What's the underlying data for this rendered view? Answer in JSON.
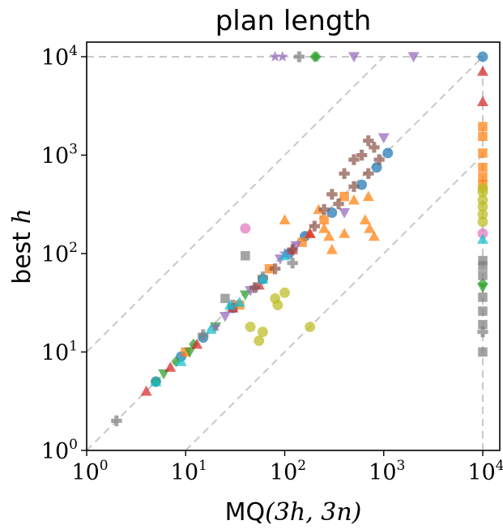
{
  "chart_data": {
    "type": "scatter",
    "title": "plan length",
    "xlabel": {
      "prefix": "MQ",
      "math": "(3h, 3n)"
    },
    "ylabel": {
      "prefix": "best ",
      "math": "h"
    },
    "xscale": "log",
    "yscale": "log",
    "xlim": [
      1,
      10000
    ],
    "ylim": [
      1,
      10000
    ],
    "x_ticks": [
      {
        "base": "10",
        "exp": "0"
      },
      {
        "base": "10",
        "exp": "1"
      },
      {
        "base": "10",
        "exp": "2"
      },
      {
        "base": "10",
        "exp": "3"
      },
      {
        "base": "10",
        "exp": "4"
      }
    ],
    "y_ticks": [
      {
        "base": "10",
        "exp": "0"
      },
      {
        "base": "10",
        "exp": "1"
      },
      {
        "base": "10",
        "exp": "2"
      },
      {
        "base": "10",
        "exp": "3"
      },
      {
        "base": "10",
        "exp": "4"
      }
    ],
    "reference_lines": [
      "y = x",
      "y = 10x",
      "y = x / 10",
      "x = 10000",
      "y = 10000"
    ],
    "grid": false,
    "legend": "none",
    "series": [
      {
        "color": "#1f77b4",
        "marker": "circle",
        "points": [
          [
            5,
            5
          ],
          [
            9,
            9
          ],
          [
            15,
            14
          ],
          [
            30,
            28
          ],
          [
            60,
            55
          ],
          [
            110,
            100
          ],
          [
            160,
            150
          ],
          [
            300,
            260
          ],
          [
            600,
            500
          ],
          [
            850,
            750
          ],
          [
            1100,
            1050
          ],
          [
            10000,
            10000
          ]
        ]
      },
      {
        "color": "#ff7f0e",
        "marker": "square",
        "points": [
          [
            10,
            10
          ],
          [
            35,
            30
          ],
          [
            70,
            70
          ],
          [
            150,
            130
          ],
          [
            250,
            220
          ],
          [
            400,
            380
          ],
          [
            10000,
            1950
          ],
          [
            10000,
            1550
          ],
          [
            10000,
            1050
          ],
          [
            10000,
            750
          ],
          [
            10000,
            600
          ],
          [
            10000,
            500
          ]
        ]
      },
      {
        "color": "#ff7f0e",
        "marker": "triangle-up",
        "points": [
          [
            100,
            220
          ],
          [
            180,
            160
          ],
          [
            220,
            280
          ],
          [
            250,
            180
          ],
          [
            280,
            150
          ],
          [
            300,
            110
          ],
          [
            400,
            160
          ],
          [
            500,
            350
          ],
          [
            700,
            380
          ],
          [
            650,
            220
          ],
          [
            720,
            180
          ],
          [
            800,
            150
          ]
        ]
      },
      {
        "color": "#2ca02c",
        "marker": "diamond",
        "points": [
          [
            5,
            5
          ],
          [
            8,
            8
          ],
          [
            12,
            12
          ],
          [
            200,
            10000
          ],
          [
            210,
            10000
          ],
          [
            10000,
            50
          ]
        ]
      },
      {
        "color": "#2ca02c",
        "marker": "triangle-down",
        "points": [
          [
            6,
            6
          ],
          [
            11,
            10
          ],
          [
            20,
            18
          ],
          [
            40,
            38
          ],
          [
            10000,
            45
          ]
        ]
      },
      {
        "color": "#d62728",
        "marker": "triangle-up",
        "points": [
          [
            4,
            4
          ],
          [
            7,
            7
          ],
          [
            13,
            12
          ],
          [
            30,
            28
          ],
          [
            55,
            48
          ],
          [
            120,
            110
          ],
          [
            180,
            160
          ],
          [
            10000,
            3500
          ],
          [
            10000,
            7100
          ]
        ]
      },
      {
        "color": "#9467bd",
        "marker": "triangle-down",
        "points": [
          [
            25,
            23
          ],
          [
            45,
            42
          ],
          [
            90,
            88
          ],
          [
            130,
            120
          ],
          [
            500,
            10000
          ],
          [
            2000,
            10000
          ],
          [
            1000,
            1500
          ],
          [
            400,
            260
          ]
        ]
      },
      {
        "color": "#9467bd",
        "marker": "star",
        "points": [
          [
            20,
            18
          ],
          [
            50,
            45
          ],
          [
            100,
            100
          ],
          [
            80,
            10000
          ],
          [
            95,
            10000
          ]
        ]
      },
      {
        "color": "#8c564b",
        "marker": "plus",
        "points": [
          [
            50,
            45
          ],
          [
            80,
            70
          ],
          [
            120,
            110
          ],
          [
            200,
            190
          ],
          [
            350,
            320
          ],
          [
            500,
            480
          ],
          [
            700,
            650
          ],
          [
            900,
            900
          ],
          [
            700,
            1400
          ],
          [
            800,
            1200
          ],
          [
            600,
            1000
          ],
          [
            500,
            900
          ],
          [
            400,
            650
          ],
          [
            300,
            400
          ],
          [
            250,
            280
          ]
        ]
      },
      {
        "color": "#e377c2",
        "marker": "circle",
        "points": [
          [
            40,
            180
          ],
          [
            10000,
            160
          ]
        ]
      },
      {
        "color": "#7f7f7f",
        "marker": "plus",
        "points": [
          [
            2,
            2
          ],
          [
            15,
            15
          ],
          [
            30,
            30
          ],
          [
            60,
            58
          ],
          [
            120,
            80
          ],
          [
            140,
            10000
          ],
          [
            10000,
            16
          ]
        ]
      },
      {
        "color": "#7f7f7f",
        "marker": "square",
        "points": [
          [
            25,
            35
          ],
          [
            40,
            95
          ],
          [
            10000,
            10
          ],
          [
            10000,
            19
          ],
          [
            10000,
            26
          ],
          [
            10000,
            36
          ],
          [
            10000,
            60
          ],
          [
            10000,
            75
          ],
          [
            10000,
            85
          ]
        ]
      },
      {
        "color": "#bcbd22",
        "marker": "circle",
        "points": [
          [
            45,
            18
          ],
          [
            55,
            13
          ],
          [
            60,
            16
          ],
          [
            80,
            35
          ],
          [
            85,
            30
          ],
          [
            100,
            40
          ],
          [
            180,
            18
          ],
          [
            10000,
            210
          ],
          [
            10000,
            250
          ],
          [
            10000,
            300
          ],
          [
            10000,
            350
          ],
          [
            10000,
            420
          ],
          [
            10000,
            460
          ]
        ]
      },
      {
        "color": "#17becf",
        "marker": "triangle-up",
        "points": [
          [
            5,
            5
          ],
          [
            9,
            8
          ],
          [
            18,
            17
          ],
          [
            28,
            30
          ],
          [
            35,
            32
          ],
          [
            60,
            55
          ],
          [
            100,
            95
          ],
          [
            10000,
            140
          ]
        ]
      }
    ]
  }
}
